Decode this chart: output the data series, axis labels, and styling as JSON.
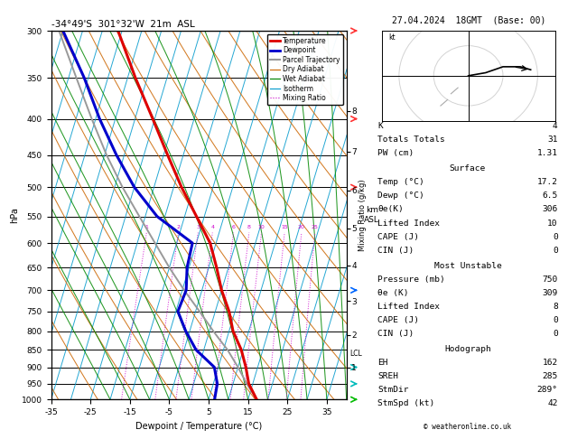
{
  "title_left": "-34°49'S  301°32'W  21m  ASL",
  "title_right": "27.04.2024  18GMT  (Base: 00)",
  "xlabel": "Dewpoint / Temperature (°C)",
  "pressure_levels": [
    300,
    350,
    400,
    450,
    500,
    550,
    600,
    650,
    700,
    750,
    800,
    850,
    900,
    950,
    1000
  ],
  "temp_profile_p": [
    1000,
    950,
    900,
    850,
    800,
    750,
    700,
    650,
    600,
    550,
    500,
    450,
    400,
    350,
    300
  ],
  "temp_profile_t": [
    17.2,
    14.0,
    12.0,
    9.5,
    6.0,
    3.5,
    0.0,
    -3.0,
    -6.5,
    -12.0,
    -18.0,
    -24.0,
    -30.5,
    -38.0,
    -46.0
  ],
  "dewp_profile_p": [
    1000,
    950,
    900,
    850,
    800,
    750,
    700,
    650,
    600,
    550,
    500,
    450,
    400,
    350,
    300
  ],
  "dewp_profile_t": [
    6.5,
    6.0,
    4.0,
    -2.0,
    -6.0,
    -9.5,
    -9.0,
    -10.5,
    -11.0,
    -22.0,
    -30.0,
    -37.0,
    -44.0,
    -51.0,
    -60.0
  ],
  "parcel_profile_p": [
    1000,
    950,
    900,
    850,
    820,
    800,
    750,
    700,
    650,
    600,
    550,
    500,
    450,
    400,
    350,
    300
  ],
  "parcel_profile_t": [
    17.2,
    13.5,
    10.0,
    6.0,
    3.0,
    1.0,
    -4.0,
    -9.5,
    -15.0,
    -20.5,
    -26.5,
    -33.0,
    -39.5,
    -46.0,
    -53.0,
    -61.0
  ],
  "x_min": -35,
  "x_max": 40,
  "p_min": 300,
  "p_max": 1000,
  "skew_factor": 28,
  "dry_adiabat_color": "#cc6600",
  "wet_adiabat_color": "#008800",
  "isotherm_color": "#0099cc",
  "temp_color": "#dd0000",
  "dewp_color": "#0000cc",
  "parcel_color": "#999999",
  "mixing_color": "#cc00cc",
  "mixing_ratios": [
    1,
    2,
    3,
    4,
    6,
    8,
    10,
    15,
    20,
    25
  ],
  "lcl_pressure": 860,
  "km_labels": [
    "1",
    "2",
    "3",
    "4",
    "5",
    "6",
    "7",
    "8"
  ],
  "km_pressures": [
    900,
    810,
    725,
    645,
    572,
    505,
    445,
    390
  ],
  "legend_labels": [
    "Temperature",
    "Dewpoint",
    "Parcel Trajectory",
    "Dry Adiabat",
    "Wet Adiabat",
    "Isotherm",
    "Mixing Ratio"
  ],
  "legend_colors": [
    "#dd0000",
    "#0000cc",
    "#999999",
    "#cc6600",
    "#008800",
    "#0099cc",
    "#cc00cc"
  ],
  "legend_lws": [
    2.0,
    2.0,
    1.5,
    0.8,
    0.8,
    0.8,
    0.8
  ],
  "legend_ls": [
    "-",
    "-",
    "-",
    "-",
    "-",
    "-",
    ":"
  ],
  "info_rows_top": [
    [
      "K",
      "4"
    ],
    [
      "Totals Totals",
      "31"
    ],
    [
      "PW (cm)",
      "1.31"
    ]
  ],
  "surface_rows": [
    [
      "Temp (°C)",
      "17.2"
    ],
    [
      "Dewp (°C)",
      "6.5"
    ],
    [
      "θe(K)",
      "306"
    ],
    [
      "Lifted Index",
      "10"
    ],
    [
      "CAPE (J)",
      "0"
    ],
    [
      "CIN (J)",
      "0"
    ]
  ],
  "mu_rows": [
    [
      "Pressure (mb)",
      "750"
    ],
    [
      "θe (K)",
      "309"
    ],
    [
      "Lifted Index",
      "8"
    ],
    [
      "CAPE (J)",
      "0"
    ],
    [
      "CIN (J)",
      "0"
    ]
  ],
  "hodo_rows": [
    [
      "EH",
      "162"
    ],
    [
      "SREH",
      "285"
    ],
    [
      "StmDir",
      "289°"
    ],
    [
      "StmSpd (kt)",
      "42"
    ]
  ],
  "copyright": "© weatheronline.co.uk",
  "most_unstable_pressure": 750,
  "most_unstable_color": "#aa00aa"
}
